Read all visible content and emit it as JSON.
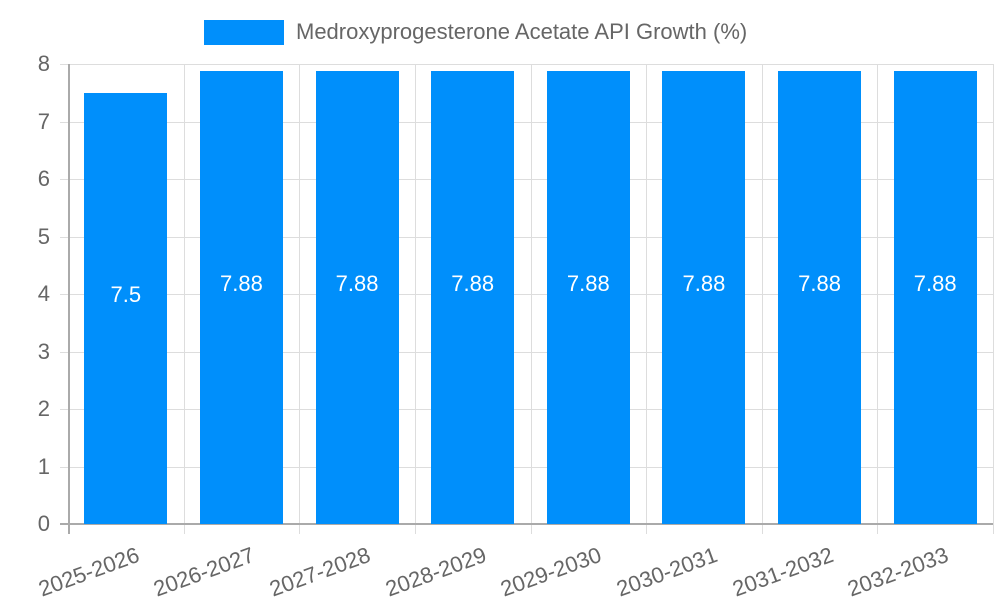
{
  "chart_data": {
    "type": "bar",
    "title": "",
    "xlabel": "",
    "ylabel": "",
    "legend": {
      "entries": [
        "Medroxyprogesterone Acetate API Growth (%)"
      ],
      "position": "top"
    },
    "categories": [
      "2025-2026",
      "2026-2027",
      "2027-2028",
      "2028-2029",
      "2029-2030",
      "2030-2031",
      "2031-2032",
      "2032-2033"
    ],
    "series": [
      {
        "name": "Medroxyprogesterone Acetate API Growth (%)",
        "values": [
          7.5,
          7.88,
          7.88,
          7.88,
          7.88,
          7.88,
          7.88,
          7.88
        ],
        "color": "#008ffb"
      }
    ],
    "data_labels": [
      "7.5",
      "7.88",
      "7.88",
      "7.88",
      "7.88",
      "7.88",
      "7.88",
      "7.88"
    ],
    "ylim": [
      0,
      8
    ],
    "yticks": [
      "0",
      "1",
      "2",
      "3",
      "4",
      "5",
      "6",
      "7",
      "8"
    ],
    "grid": true
  }
}
